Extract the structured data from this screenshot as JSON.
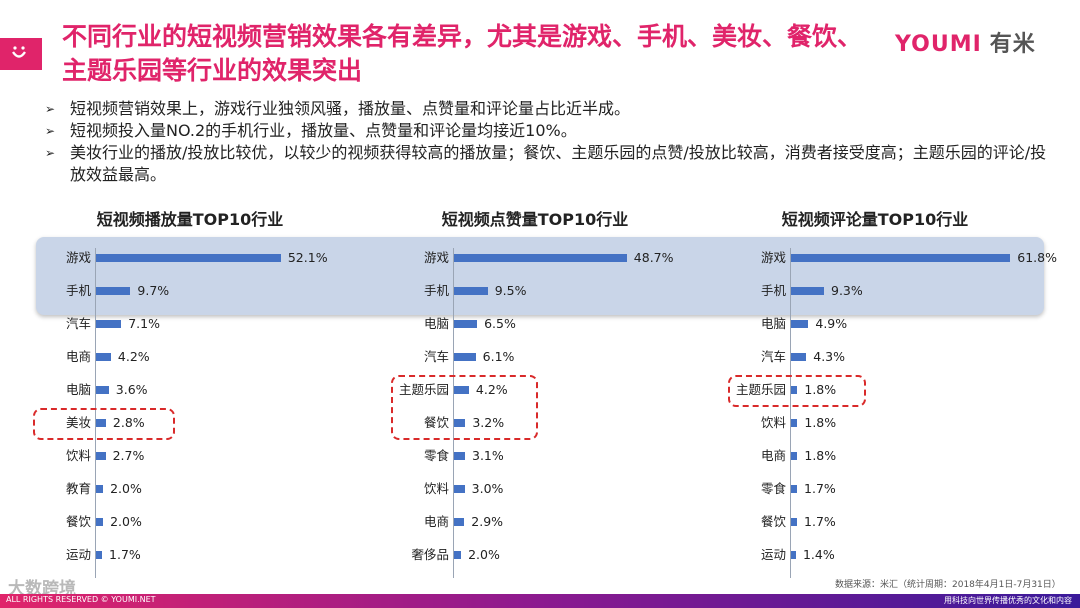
{
  "header": {
    "title": "不同行业的短视频营销效果各有差异，尤其是游戏、手机、美妆、餐饮、主题乐园等行业的效果突出",
    "brand_en": "YOUMI",
    "brand_cn": "有米"
  },
  "bullets": [
    "短视频营销效果上，游戏行业独领风骚，播放量、点赞量和评论量占比近半成。",
    "短视频投入量NO.2的手机行业，播放量、点赞量和评论量均接近10%。",
    "美妆行业的播放/投放比较优，以较少的视频获得较高的播放量；餐饮、主题乐园的点赞/投放比较高，消费者接受度高；主题乐园的评论/投放效益最高。"
  ],
  "chart_data": [
    {
      "type": "bar",
      "title": "短视频播放量TOP10行业",
      "categories": [
        "游戏",
        "手机",
        "汽车",
        "电商",
        "电脑",
        "美妆",
        "饮料",
        "教育",
        "餐饮",
        "运动"
      ],
      "values": [
        52.1,
        9.7,
        7.1,
        4.2,
        3.6,
        2.8,
        2.7,
        2.0,
        2.0,
        1.7
      ],
      "labels": [
        "52.1%",
        "9.7%",
        "7.1%",
        "4.2%",
        "3.6%",
        "2.8%",
        "2.7%",
        "2.0%",
        "2.0%",
        "1.7%"
      ],
      "highlight": [
        "美妆"
      ]
    },
    {
      "type": "bar",
      "title": "短视频点赞量TOP10行业",
      "categories": [
        "游戏",
        "手机",
        "电脑",
        "汽车",
        "主题乐园",
        "餐饮",
        "零食",
        "饮料",
        "电商",
        "奢侈品"
      ],
      "values": [
        48.7,
        9.5,
        6.5,
        6.1,
        4.2,
        3.2,
        3.1,
        3.0,
        2.9,
        2.0
      ],
      "labels": [
        "48.7%",
        "9.5%",
        "6.5%",
        "6.1%",
        "4.2%",
        "3.2%",
        "3.1%",
        "3.0%",
        "2.9%",
        "2.0%"
      ],
      "highlight": [
        "主题乐园",
        "餐饮"
      ]
    },
    {
      "type": "bar",
      "title": "短视频评论量TOP10行业",
      "categories": [
        "游戏",
        "手机",
        "电脑",
        "汽车",
        "主题乐园",
        "饮料",
        "电商",
        "零食",
        "餐饮",
        "运动"
      ],
      "values": [
        61.8,
        9.3,
        4.9,
        4.3,
        1.8,
        1.8,
        1.8,
        1.7,
        1.7,
        1.4
      ],
      "labels": [
        "61.8%",
        "9.3%",
        "4.9%",
        "4.3%",
        "1.8%",
        "1.8%",
        "1.8%",
        "1.7%",
        "1.7%",
        "1.4%"
      ],
      "highlight": [
        "主题乐园"
      ]
    }
  ],
  "source": "数据来源：米汇（统计周期：2018年4月1日-7月31日）",
  "footer": {
    "left": "ALL RIGHTS RESERVED © YOUMI.NET",
    "right": "用科技向世界传播优秀的文化和内容",
    "watermark": "大数跨境"
  },
  "colors": {
    "accent": "#e0246a",
    "bar": "#4472c4",
    "highlight": "#d92a2a",
    "band": "#c9d5e8"
  }
}
